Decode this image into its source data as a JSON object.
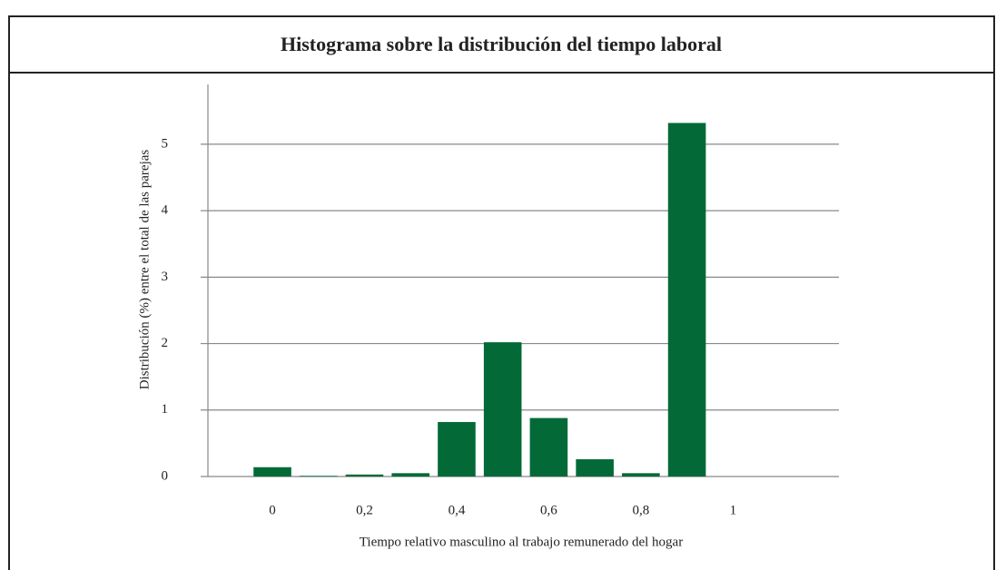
{
  "chart_data": {
    "type": "bar",
    "title": "Histograma sobre la distribución del tiempo laboral",
    "y_label": "Distribución (%) entre el total de las parejas",
    "x_label": "Tiempo relativo masculino al trabajo remunerado del hogar",
    "x": [
      0,
      0.1,
      0.2,
      0.3,
      0.4,
      0.5,
      0.6,
      0.7,
      0.8,
      0.9
    ],
    "values": [
      0.14,
      0.01,
      0.03,
      0.05,
      0.82,
      2.02,
      0.88,
      0.26,
      0.05,
      5.32
    ],
    "color": "#036a37",
    "xlim": [
      -0.14,
      1.23
    ],
    "xticks": [
      0,
      {
        "value": 0.2,
        "label": "0,2"
      },
      {
        "value": 0.4,
        "label": "0,4"
      },
      {
        "value": 0.6,
        "label": "0,6"
      },
      {
        "value": 0.8,
        "label": "0,8"
      },
      1
    ],
    "ylim": [
      0,
      5.9
    ],
    "yticks": [
      0,
      1,
      2,
      3,
      4,
      5
    ],
    "grid": true
  }
}
